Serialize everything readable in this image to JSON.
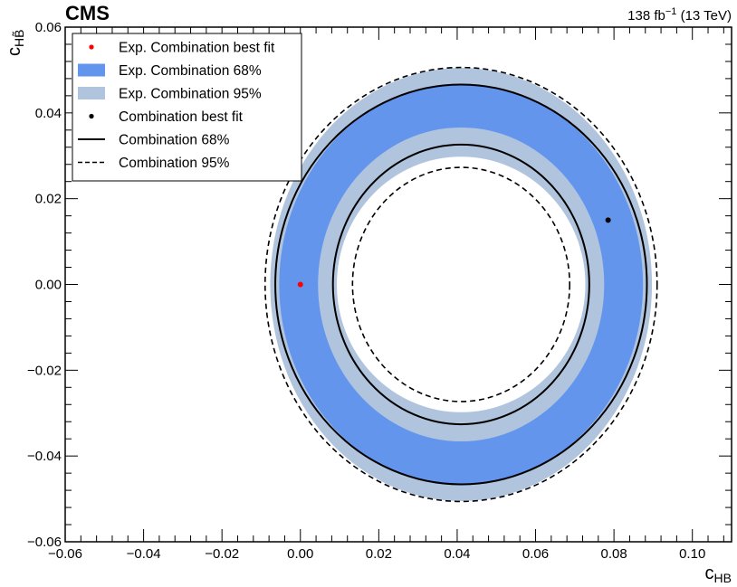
{
  "header": {
    "experiment": "CMS",
    "lumi_value": "138 fb",
    "lumi_exponent": "−1",
    "lumi_energy": " (13 TeV)"
  },
  "chart_data": {
    "type": "contour",
    "xlabel_main": "c",
    "xlabel_sub": "HB",
    "ylabel_main": "c",
    "ylabel_sub": "HB̃",
    "xlim": [
      -0.06,
      0.11
    ],
    "ylim": [
      -0.06,
      0.06
    ],
    "x_ticks": [
      -0.06,
      -0.04,
      -0.02,
      0.0,
      0.02,
      0.04,
      0.06,
      0.08,
      0.1
    ],
    "x_tick_labels": [
      "−0.06",
      "−0.04",
      "−0.02",
      "0.00",
      "0.02",
      "0.04",
      "0.06",
      "0.08",
      "0.10"
    ],
    "y_ticks": [
      -0.06,
      -0.04,
      -0.02,
      0.0,
      0.02,
      0.04,
      0.06
    ],
    "y_tick_labels": [
      "−0.06",
      "−0.04",
      "−0.02",
      "0.00",
      "0.02",
      "0.04",
      "0.06"
    ],
    "grid": false,
    "legend_position": "top-left",
    "legend": [
      {
        "label": "Exp. Combination best fit",
        "style": "marker",
        "color": "#ff0000"
      },
      {
        "label": "Exp. Combination 68%",
        "style": "fill",
        "color": "#6495ed"
      },
      {
        "label": "Exp. Combination 95%",
        "style": "fill",
        "color": "#b0c4de"
      },
      {
        "label": "Combination best fit",
        "style": "marker",
        "color": "#000000"
      },
      {
        "label": "Combination 68%",
        "style": "solid-line",
        "color": "#000000"
      },
      {
        "label": "Combination 95%",
        "style": "dashed-line",
        "color": "#000000"
      }
    ],
    "center": [
      0.041,
      0.0
    ],
    "expected_68": {
      "outer": [
        0.0464,
        0.0468
      ],
      "inner": [
        0.0365,
        0.0366
      ]
    },
    "expected_95": {
      "outer": [
        0.0487,
        0.0505
      ],
      "inner": [
        0.0317,
        0.0298
      ]
    },
    "observed_68": {
      "outer": [
        0.0474,
        0.0466
      ],
      "inner": [
        0.0327,
        0.0326
      ]
    },
    "observed_95": {
      "outer": [
        0.05,
        0.0506
      ],
      "inner": [
        0.0277,
        0.0273
      ]
    },
    "expected_best_fit": [
      0.0,
      0.0
    ],
    "observed_best_fit": [
      0.0785,
      0.015
    ],
    "colors": {
      "exp68": "#6495ed",
      "exp95": "#b0c4de",
      "exp_best": "#ff0000",
      "obs": "#000000"
    }
  }
}
